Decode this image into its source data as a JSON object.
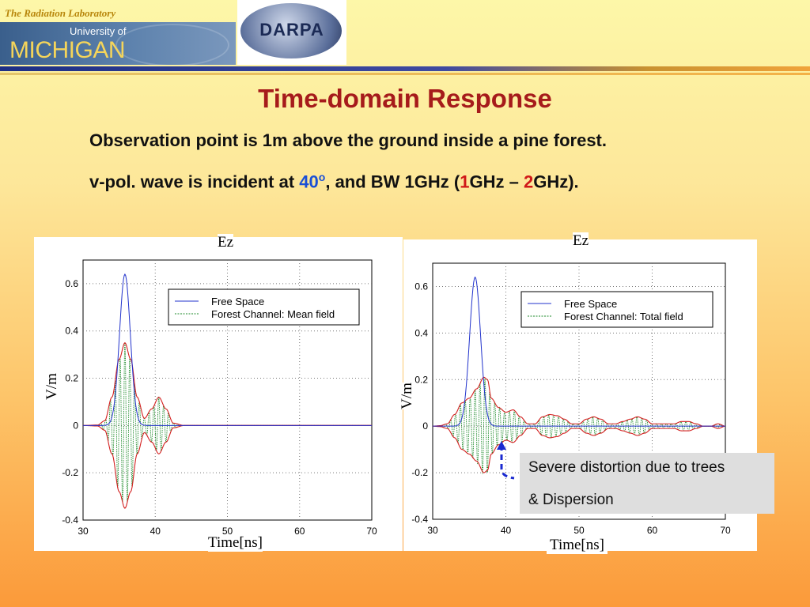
{
  "header": {
    "lab": "The Radiation Laboratory",
    "university_of": "University of",
    "michigan": "MICHIGAN",
    "darpa": "DARPA"
  },
  "title": "Time-domain Response",
  "subtitle1": "Observation point is 1m above the ground inside a pine forest.",
  "subtitle2": {
    "prefix": "v-pol. wave is incident at ",
    "angle": "40",
    "degree": "o",
    "mid": ", and BW 1GHz (",
    "f1": "1",
    "unit1": "GHz – ",
    "f2": "2",
    "suffix": "GHz)."
  },
  "colors": {
    "title": "#a61b1b",
    "free_space": "#2233cc",
    "forest_fill": "#1d8a2a",
    "envelope": "#d42020",
    "highlight_blue": "#1a4fd6",
    "highlight_red": "#d01818"
  },
  "callout": {
    "line1": "Severe distortion due to trees",
    "line2": "& Dispersion"
  },
  "chart_data": [
    {
      "type": "line",
      "title": "Ez",
      "xlabel": "Time[ns]",
      "ylabel": "V/m",
      "xlim": [
        30,
        70
      ],
      "ylim": [
        -0.4,
        0.7
      ],
      "xticks": [
        "30",
        "40",
        "50",
        "60",
        "70"
      ],
      "yticks": [
        "0.6",
        "0.4",
        "0.2",
        "0",
        "-0.2",
        "-0.4"
      ],
      "grid": true,
      "legend_position": "top-right",
      "series": [
        {
          "name": "Free Space",
          "style": "solid",
          "color": "#2233cc",
          "x": [
            30,
            33,
            34,
            35,
            35.8,
            36.5,
            37.5,
            38.5,
            40,
            70
          ],
          "values": [
            0,
            0.005,
            0.06,
            0.4,
            0.64,
            0.4,
            0.08,
            0.01,
            0,
            0
          ]
        },
        {
          "name": "Forest Channel: Mean field",
          "style": "dotted",
          "color": "#1d8a2a",
          "envelope_x": [
            30,
            32,
            33,
            34,
            35,
            35.8,
            36.6,
            37.5,
            38.5,
            39.5,
            40.5,
            41.5,
            42.5,
            44,
            70
          ],
          "envelope_upper": [
            0,
            0.002,
            0.02,
            0.12,
            0.28,
            0.35,
            0.28,
            0.12,
            0.03,
            0.07,
            0.12,
            0.07,
            0.01,
            0,
            0
          ],
          "envelope_lower": [
            0,
            -0.002,
            -0.02,
            -0.12,
            -0.28,
            -0.35,
            -0.28,
            -0.12,
            -0.03,
            -0.07,
            -0.12,
            -0.07,
            -0.01,
            0,
            0
          ],
          "carrier_period_ns": 0.67
        }
      ]
    },
    {
      "type": "line",
      "title": "Ez",
      "xlabel": "Time[ns]",
      "ylabel": "V/m",
      "xlim": [
        30,
        70
      ],
      "ylim": [
        -0.4,
        0.7
      ],
      "xticks": [
        "30",
        "40",
        "50",
        "60",
        "70"
      ],
      "yticks": [
        "0.6",
        "0.4",
        "0.2",
        "0",
        "-0.2",
        "-0.4"
      ],
      "grid": true,
      "legend_position": "top-right",
      "series": [
        {
          "name": "Free Space",
          "style": "solid",
          "color": "#2233cc",
          "x": [
            30,
            33,
            34,
            35,
            35.8,
            36.5,
            37.5,
            38.5,
            40,
            70
          ],
          "values": [
            0,
            0.005,
            0.06,
            0.4,
            0.64,
            0.4,
            0.08,
            0.01,
            0,
            0
          ]
        },
        {
          "name": "Forest Channel: Total field",
          "style": "dotted",
          "color": "#1d8a2a",
          "envelope_x": [
            30,
            31,
            32,
            33,
            34,
            35,
            36,
            37,
            37.5,
            38,
            39,
            40,
            41,
            42,
            43,
            44,
            45,
            46,
            47,
            48,
            49,
            50,
            51,
            52,
            53,
            54,
            55,
            56,
            57,
            58,
            59,
            60,
            61,
            62,
            63,
            64,
            65,
            66,
            67,
            68,
            69,
            70
          ],
          "envelope_upper": [
            0,
            0.002,
            0.01,
            0.05,
            0.1,
            0.12,
            0.16,
            0.21,
            0.2,
            0.12,
            0.08,
            0.06,
            0.07,
            0.04,
            0.01,
            0.01,
            0.04,
            0.05,
            0.045,
            0.03,
            0.01,
            0.01,
            0.03,
            0.04,
            0.03,
            0.01,
            0.01,
            0.02,
            0.03,
            0.04,
            0.03,
            0.01,
            0.01,
            0.01,
            0.01,
            0.02,
            0.02,
            0.01,
            0.0,
            0.0,
            0.01,
            0.0
          ],
          "envelope_lower": [
            0,
            -0.002,
            -0.01,
            -0.05,
            -0.1,
            -0.12,
            -0.15,
            -0.2,
            -0.19,
            -0.12,
            -0.08,
            -0.06,
            -0.07,
            -0.04,
            -0.01,
            -0.01,
            -0.04,
            -0.05,
            -0.045,
            -0.03,
            -0.01,
            -0.01,
            -0.03,
            -0.04,
            -0.03,
            -0.01,
            -0.01,
            -0.02,
            -0.03,
            -0.04,
            -0.03,
            -0.01,
            -0.01,
            -0.01,
            -0.01,
            -0.02,
            -0.02,
            -0.01,
            0.0,
            0.0,
            -0.01,
            0.0
          ],
          "carrier_period_ns": 0.67
        }
      ]
    }
  ]
}
